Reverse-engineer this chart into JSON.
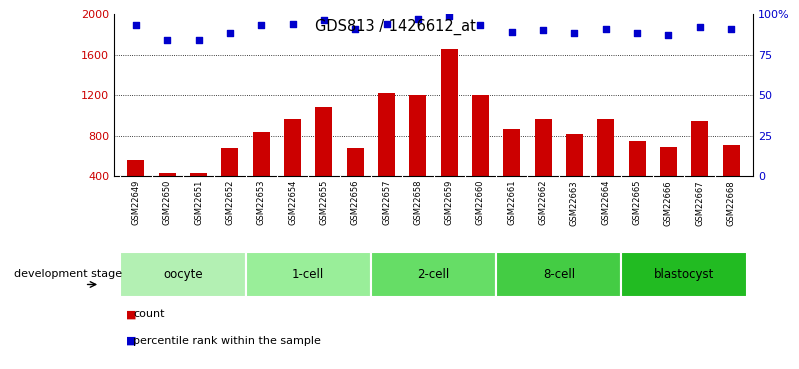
{
  "title": "GDS813 / 1426612_at",
  "samples": [
    "GSM22649",
    "GSM22650",
    "GSM22651",
    "GSM22652",
    "GSM22653",
    "GSM22654",
    "GSM22655",
    "GSM22656",
    "GSM22657",
    "GSM22658",
    "GSM22659",
    "GSM22660",
    "GSM22661",
    "GSM22662",
    "GSM22663",
    "GSM22664",
    "GSM22665",
    "GSM22666",
    "GSM22667",
    "GSM22668"
  ],
  "counts": [
    560,
    430,
    430,
    680,
    840,
    960,
    1080,
    680,
    1220,
    1200,
    1650,
    1200,
    870,
    960,
    820,
    960,
    750,
    690,
    940,
    710
  ],
  "percentiles": [
    93,
    84,
    84,
    88,
    93,
    94,
    96,
    91,
    94,
    97,
    99,
    93,
    89,
    90,
    88,
    91,
    88,
    87,
    92,
    91
  ],
  "groups": [
    {
      "label": "oocyte",
      "start": 0,
      "end": 4,
      "color": "#b3f0b3"
    },
    {
      "label": "1-cell",
      "start": 4,
      "end": 8,
      "color": "#99ee99"
    },
    {
      "label": "2-cell",
      "start": 8,
      "end": 12,
      "color": "#66dd66"
    },
    {
      "label": "8-cell",
      "start": 12,
      "end": 16,
      "color": "#44cc44"
    },
    {
      "label": "blastocyst",
      "start": 16,
      "end": 20,
      "color": "#22bb22"
    }
  ],
  "bar_color": "#cc0000",
  "dot_color": "#0000cc",
  "ylim_left": [
    400,
    2000
  ],
  "ylim_right": [
    0,
    100
  ],
  "yticks_left": [
    400,
    800,
    1200,
    1600,
    2000
  ],
  "yticks_right": [
    0,
    25,
    50,
    75,
    100
  ],
  "ylabel_right_labels": [
    "0",
    "25",
    "50",
    "75",
    "100%"
  ],
  "background_color": "#ffffff",
  "tick_label_color_left": "#cc0000",
  "tick_label_color_right": "#0000cc",
  "xtick_bg_color": "#c8c8c8",
  "dev_stage_label": "development stage",
  "legend_count": "count",
  "legend_pct": "percentile rank within the sample"
}
